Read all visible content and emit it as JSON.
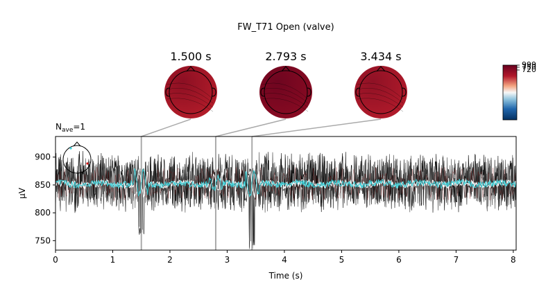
{
  "chart_data": {
    "type": "line",
    "title": "FW_T71 Open (valve)",
    "nave_label": "N",
    "nave_sub": "ave",
    "nave_value": "=1",
    "xlabel": "Time (s)",
    "ylabel": "µV",
    "xlim": [
      0,
      8.05
    ],
    "ylim": [
      733,
      937
    ],
    "xticks": [
      0,
      1,
      2,
      3,
      4,
      5,
      6,
      7,
      8
    ],
    "yticks": [
      750,
      800,
      850,
      900
    ],
    "topomap_times": [
      1.5,
      2.793,
      3.434
    ],
    "topomap_labels": [
      "1.500 s",
      "2.793 s",
      "3.434 s"
    ],
    "colorbar_labels": [
      "999",
      "750",
      "720"
    ],
    "mean_trace_colors": [
      "#ffffff",
      "#3dd0d8"
    ],
    "channel_trace_color": "#000000",
    "event_annotations": [
      {
        "t": 1.5,
        "min": 760,
        "max": 880
      },
      {
        "t": 2.8,
        "min": 805,
        "max": 880
      },
      {
        "t": 3.434,
        "min": 735,
        "max": 880
      }
    ],
    "series": [
      {
        "role": "channels-envelope",
        "lower": 800,
        "upper": 910
      },
      {
        "role": "mean",
        "center": 852,
        "spread": 6
      }
    ]
  }
}
